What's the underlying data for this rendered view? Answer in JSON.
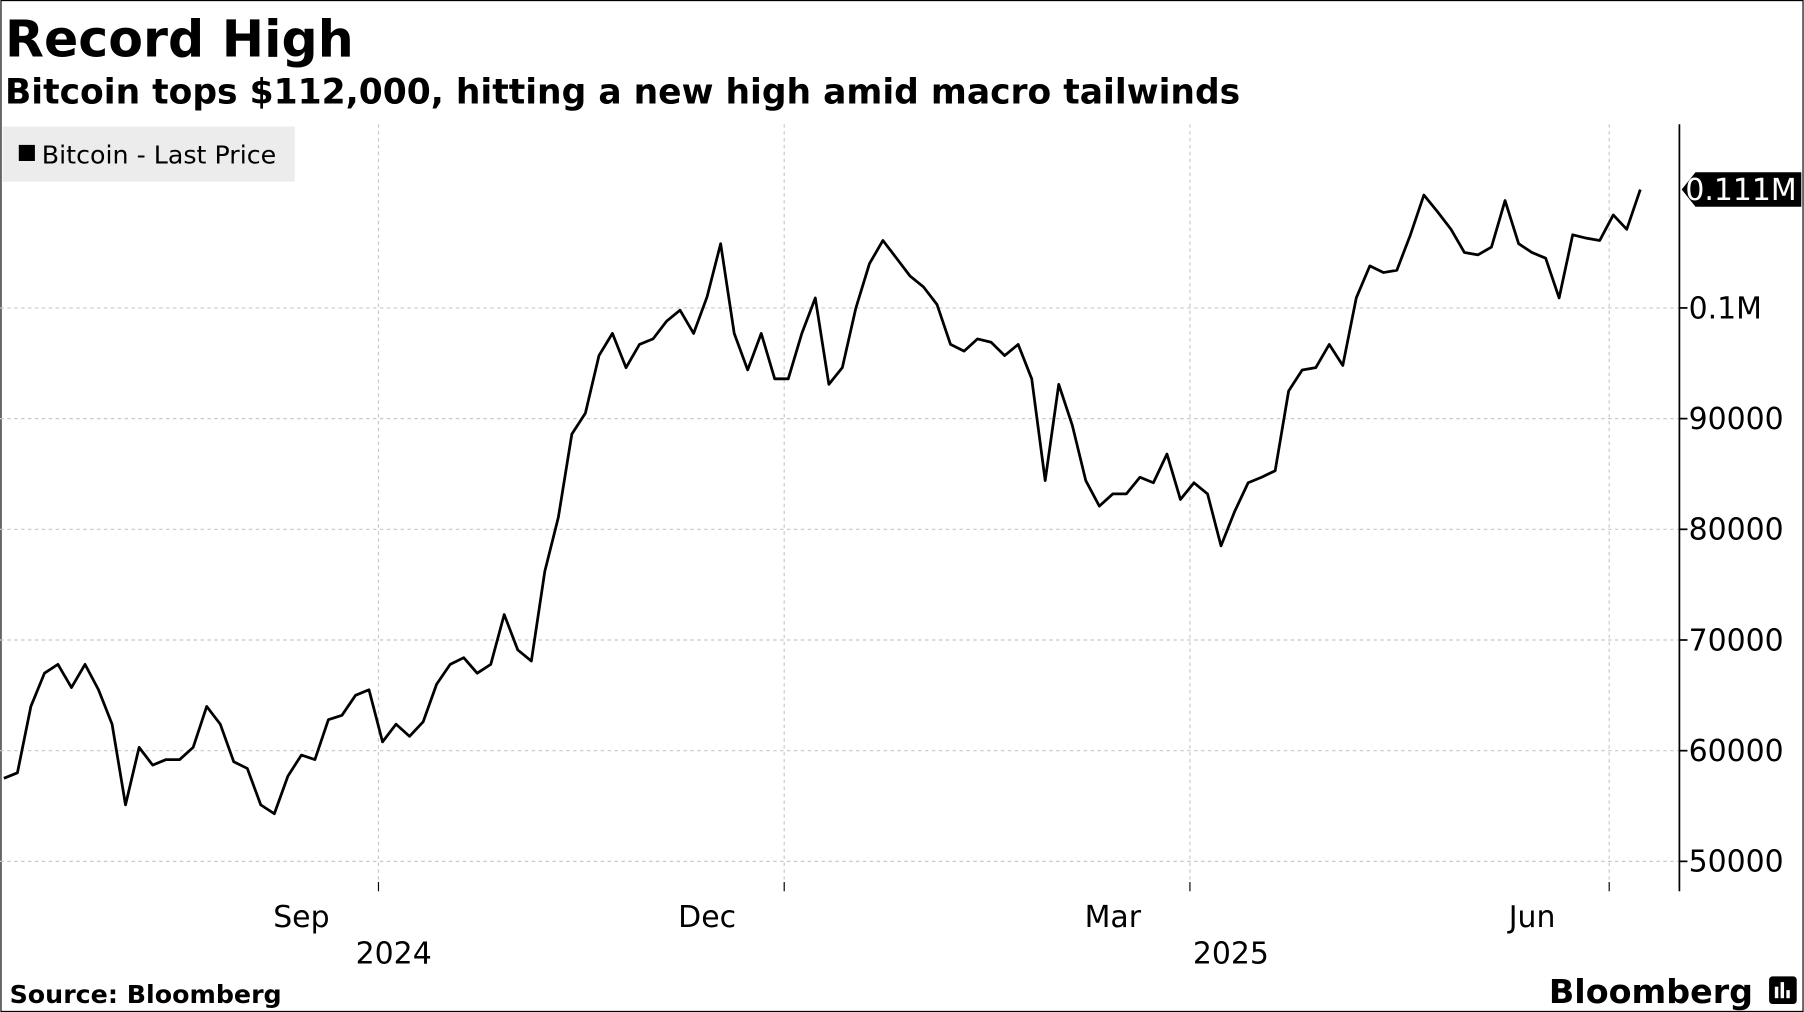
{
  "chart_data": {
    "type": "line",
    "title": "Record High",
    "subtitle": "Bitcoin tops $112,000, hitting a new high amid macro tailwinds",
    "source": "Source: Bloomberg",
    "brand": "Bloomberg",
    "legend": "top-left",
    "grid": true,
    "y_axis_side": "right",
    "year_labels": [
      "2024",
      "2025"
    ],
    "categories": [
      null,
      null,
      null,
      null,
      null,
      null,
      null,
      null,
      null,
      null,
      null,
      null,
      null,
      null,
      null,
      null,
      null,
      null,
      null,
      null,
      null,
      null,
      "Sep",
      null,
      null,
      null,
      null,
      null,
      null,
      null,
      null,
      null,
      null,
      null,
      null,
      null,
      null,
      null,
      null,
      null,
      null,
      null,
      null,
      null,
      null,
      null,
      null,
      null,
      null,
      null,
      null,
      null,
      "Dec",
      null,
      null,
      null,
      null,
      null,
      null,
      null,
      null,
      null,
      null,
      null,
      null,
      null,
      null,
      null,
      null,
      null,
      null,
      null,
      null,
      null,
      null,
      null,
      null,
      null,
      null,
      null,
      null,
      null,
      "Mar",
      null,
      null,
      null,
      null,
      null,
      null,
      null,
      null,
      null,
      null,
      null,
      null,
      null,
      null,
      null,
      null,
      null,
      null,
      null,
      null,
      null,
      null,
      null,
      null,
      null,
      null,
      null,
      null,
      null,
      null,
      "Jun",
      null,
      null,
      null,
      null,
      null,
      null,
      null,
      null
    ],
    "series": [
      {
        "name": "Bitcoin - Last Price",
        "color": "#000000",
        "values": [
          57500,
          58000,
          64000,
          67000,
          67800,
          65700,
          67800,
          65500,
          62400,
          55100,
          60300,
          58700,
          59200,
          59200,
          60300,
          64000,
          62400,
          59000,
          58400,
          55100,
          54300,
          57700,
          59600,
          59200,
          62800,
          63200,
          65000,
          65500,
          60800,
          62400,
          61300,
          62600,
          66000,
          67800,
          68400,
          67000,
          67800,
          72300,
          69100,
          68100,
          76200,
          81100,
          88600,
          90500,
          95700,
          97700,
          94600,
          96700,
          97200,
          98800,
          99800,
          97700,
          101000,
          105800,
          97700,
          94400,
          97700,
          93600,
          93600,
          97700,
          100900,
          93100,
          94600,
          100000,
          104000,
          106100,
          104500,
          102900,
          101900,
          100300,
          96700,
          96100,
          97200,
          96900,
          95700,
          96700,
          93600,
          84400,
          93100,
          89400,
          84400,
          82100,
          83200,
          83200,
          84700,
          84200,
          86800,
          82700,
          84200,
          83200,
          78500,
          81600,
          84200,
          84700,
          85300,
          92500,
          94400,
          94600,
          96700,
          94800,
          100900,
          103800,
          103200,
          103400,
          106600,
          110200,
          108700,
          107100,
          105000,
          104800,
          105500,
          109700,
          105800,
          105000,
          104500,
          100900,
          106600,
          106300,
          106100,
          108400,
          107100,
          110700
        ],
        "last_value_label": "0.111M"
      }
    ],
    "ylim": [
      47300,
      116600
    ],
    "yticks": [
      50000,
      60000,
      70000,
      80000,
      90000,
      {
        "value": 100000,
        "label": "0.1M"
      }
    ]
  }
}
